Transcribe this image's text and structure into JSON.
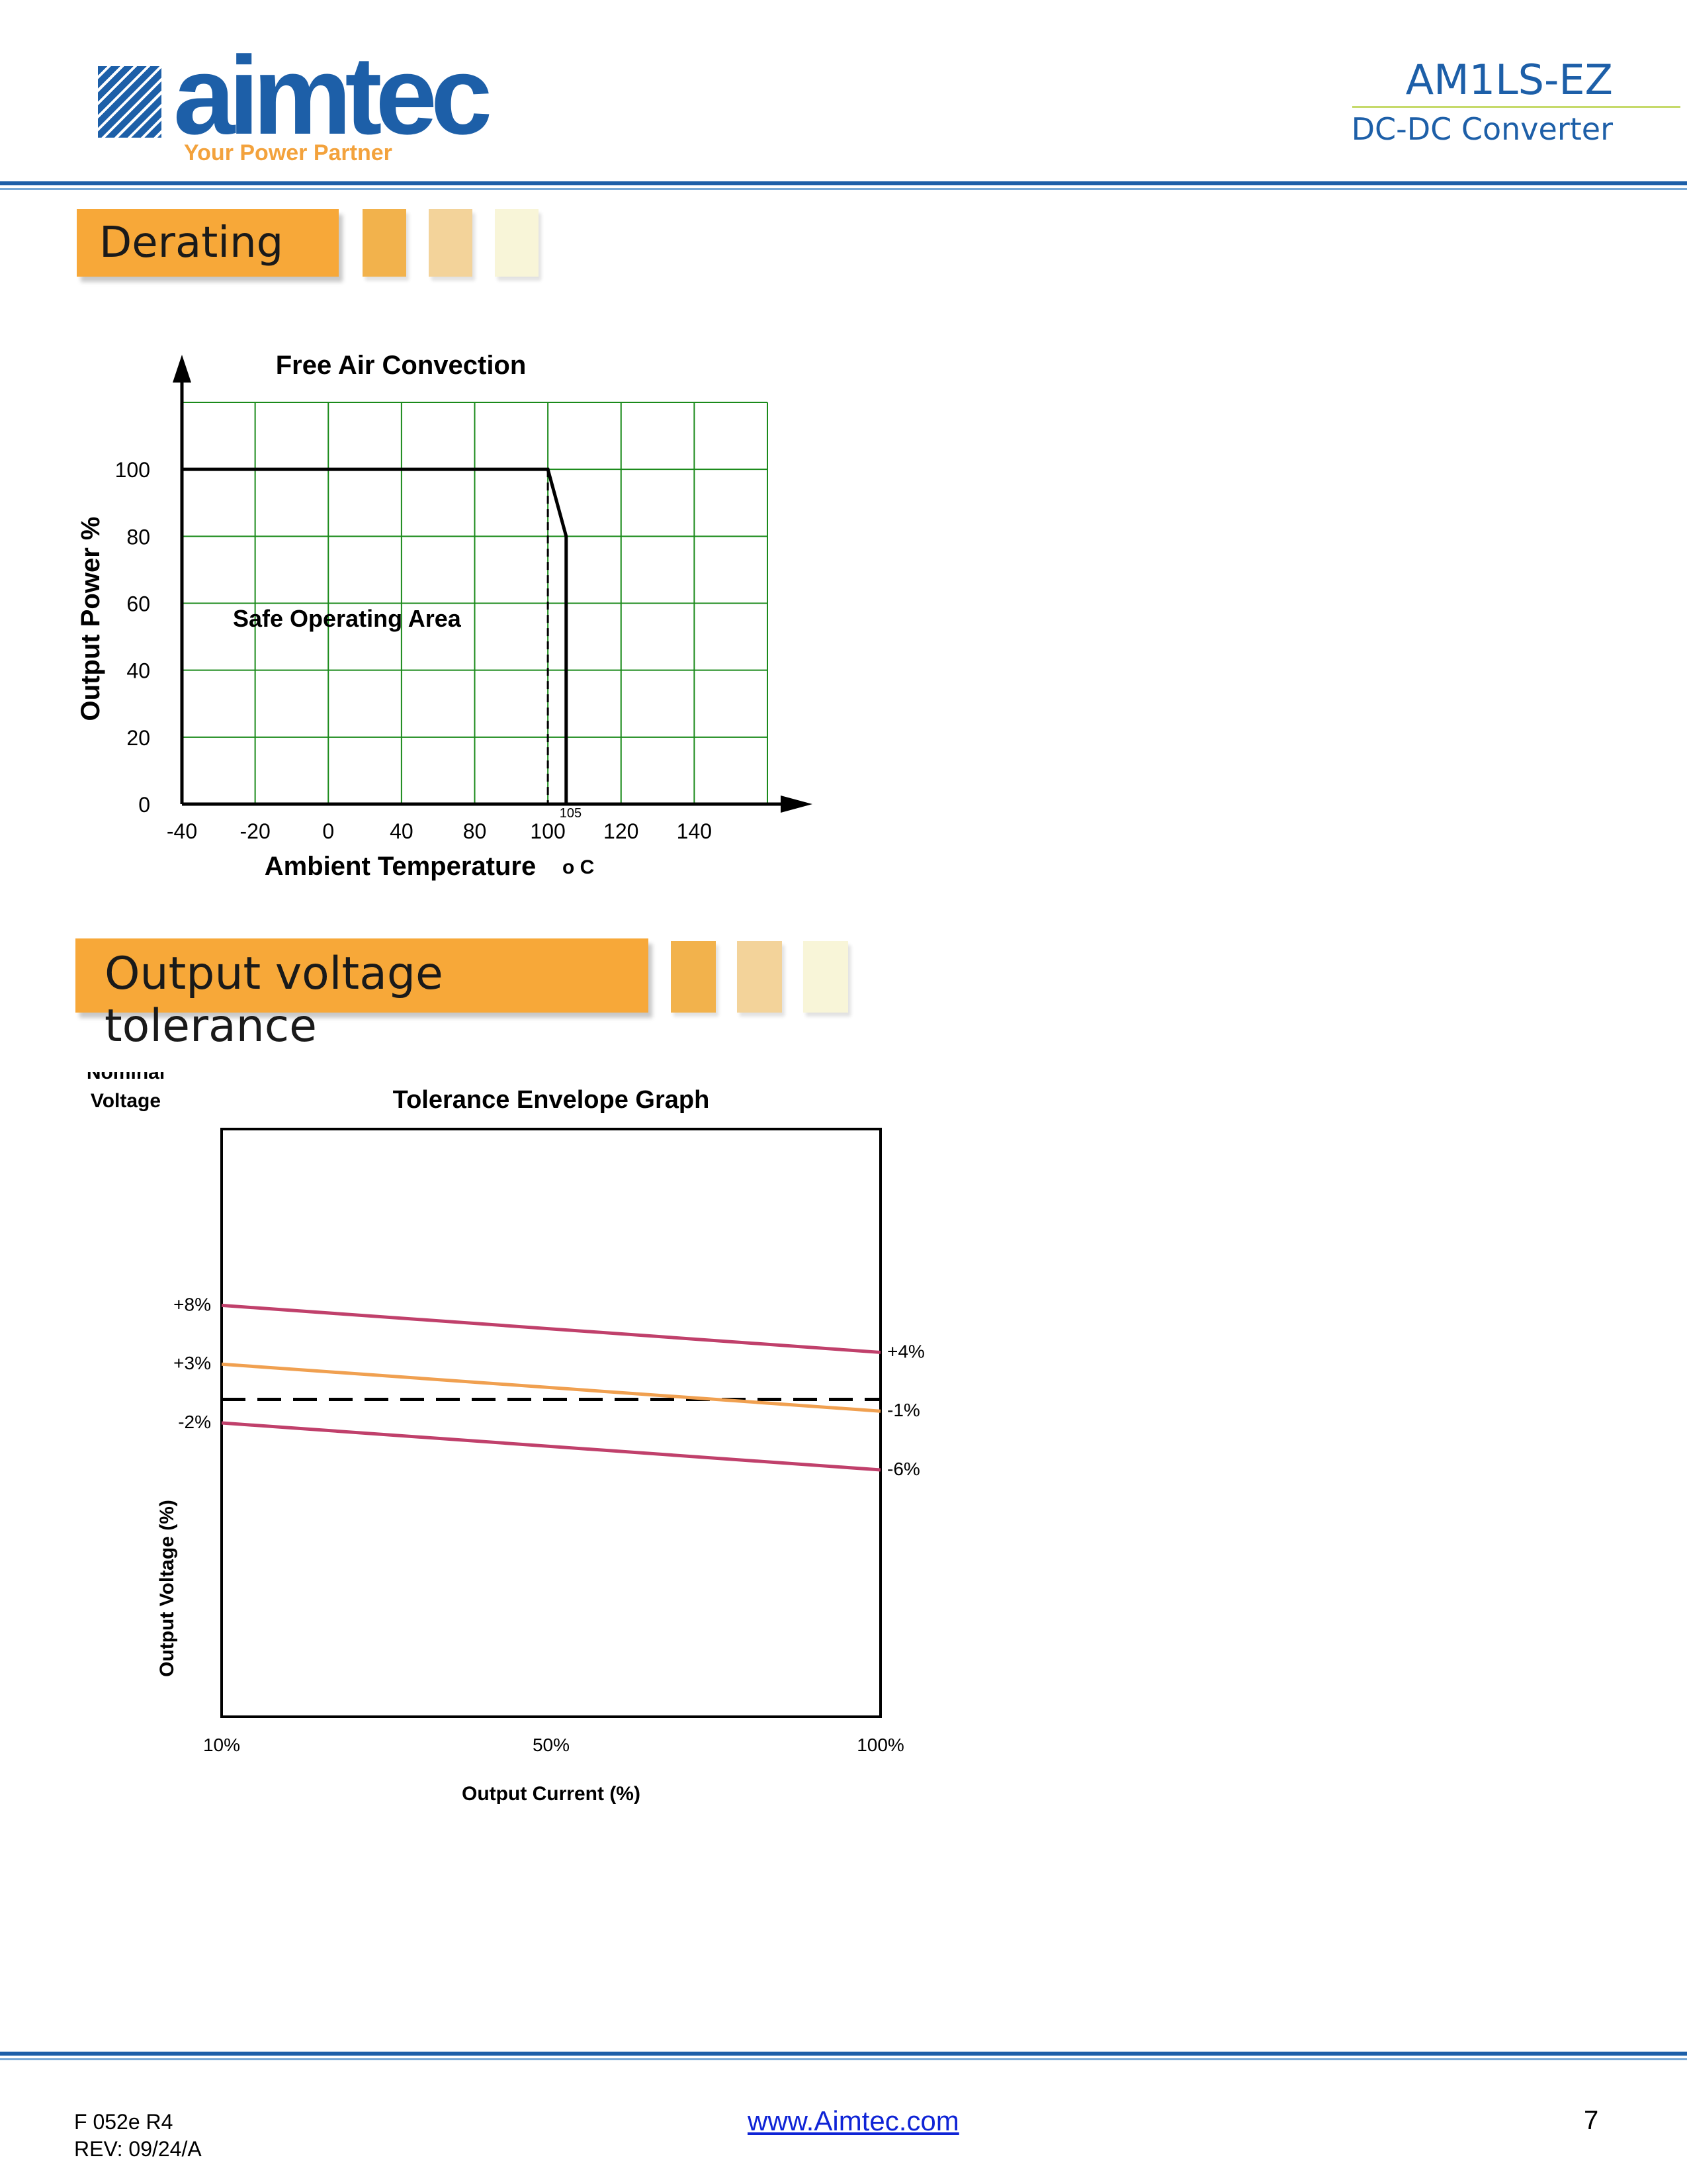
{
  "header": {
    "brand": "aimtec",
    "tagline": "Your Power Partner",
    "product_code": "AM1LS-EZ",
    "product_type": "DC-DC Converter"
  },
  "sections": {
    "derating_title": "Derating",
    "tolerance_title": "Output voltage tolerance"
  },
  "colors": {
    "brand_blue": "#1d5fa8",
    "banner_orange": "#f7a839",
    "grid_green": "#1a8a1a",
    "upper_lower_line": "#c0406b",
    "nominal_line": "#f0a050"
  },
  "chart_data": [
    {
      "type": "line",
      "title": "Free Air Convection",
      "xlabel": "Ambient Temperature",
      "xunit": "o C",
      "ylabel": "Output Power %",
      "xticks": [
        "-40",
        "-20",
        "0",
        "40",
        "80",
        "100",
        "120",
        "140"
      ],
      "yticks": [
        "0",
        "20",
        "40",
        "60",
        "80",
        "100"
      ],
      "ylim": [
        0,
        120
      ],
      "grid": true,
      "series": [
        {
          "points": [
            {
              "x": -40,
              "y": 100
            },
            {
              "x": 100,
              "y": 100
            },
            {
              "x": 105,
              "y": 80
            },
            {
              "x": 105,
              "y": 0
            }
          ]
        }
      ],
      "reference_marker": {
        "x": 100,
        "label": "105"
      },
      "annotations": [
        "Safe Operating Area"
      ]
    },
    {
      "type": "line",
      "title": "Tolerance Envelope Graph",
      "xlabel": "Output Current (%)",
      "ylabel": "Output Voltage (%)",
      "xticks": [
        "10%",
        "50%",
        "100%"
      ],
      "nominal_label": [
        "Nominal",
        "Voltage"
      ],
      "grid": false,
      "series": [
        {
          "x": [
            "10%",
            "100%"
          ],
          "values": [
            8,
            4
          ],
          "labels": [
            "+8%",
            "+4%"
          ],
          "color": "#c0406b"
        },
        {
          "x": [
            "10%",
            "100%"
          ],
          "values": [
            3,
            -1
          ],
          "labels": [
            "+3%",
            "-1%"
          ],
          "color": "#f0a050"
        },
        {
          "x": [
            "10%",
            "100%"
          ],
          "values": [
            -2,
            -6
          ],
          "labels": [
            "-2%",
            "-6%"
          ],
          "color": "#c0406b"
        }
      ],
      "reference_line": {
        "value": 0,
        "style": "dashed",
        "label": "Nominal Voltage"
      }
    }
  ],
  "footer": {
    "form_code": "F 052e R4",
    "revision": "REV: 09/24/A",
    "website": "www.Aimtec.com",
    "page_number": "7"
  }
}
